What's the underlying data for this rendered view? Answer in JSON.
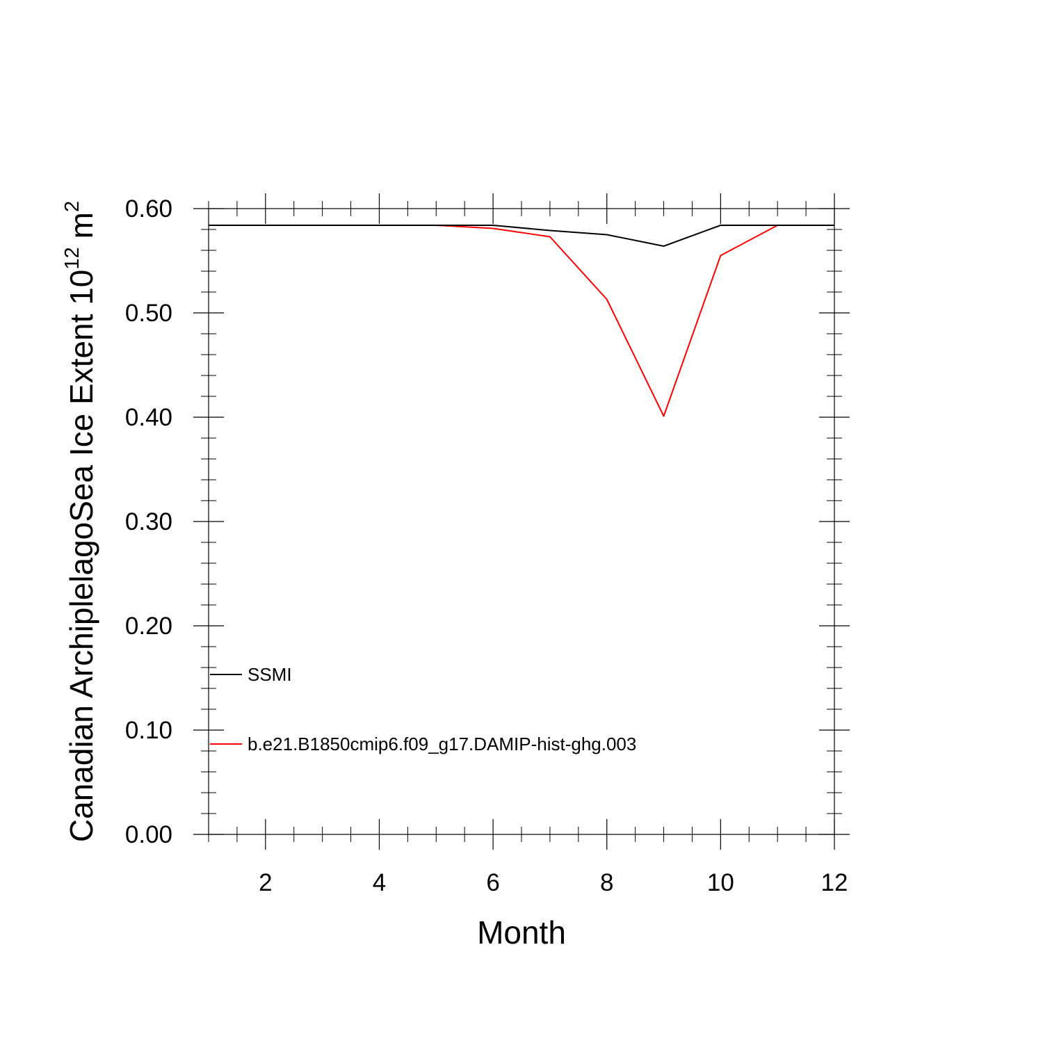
{
  "chart_data": {
    "type": "line",
    "title": "",
    "xlabel": "Month",
    "ylabel": {
      "text": "Canadian ArchiplelagoSea Ice Extent 10",
      "superscript": "12",
      "unit": "m",
      "unit_superscript": "2"
    },
    "xlim": [
      1,
      12
    ],
    "ylim": [
      0.0,
      0.6
    ],
    "xticks": [
      2,
      4,
      6,
      8,
      10,
      12
    ],
    "xtick_labels": [
      "2",
      "4",
      "6",
      "8",
      "10",
      "12"
    ],
    "yticks": [
      0.0,
      0.1,
      0.2,
      0.3,
      0.4,
      0.5,
      0.6
    ],
    "ytick_labels": [
      "0.00",
      "0.10",
      "0.20",
      "0.30",
      "0.40",
      "0.50",
      "0.60"
    ],
    "grid": false,
    "legend_position": "bottom-left",
    "x": [
      1,
      2,
      3,
      4,
      5,
      6,
      7,
      8,
      9,
      10,
      11,
      12
    ],
    "series": [
      {
        "name": "SSMI",
        "color": "#000000",
        "values": [
          0.584,
          0.584,
          0.584,
          0.584,
          0.584,
          0.584,
          0.579,
          0.575,
          0.564,
          0.584,
          0.584,
          0.584
        ]
      },
      {
        "name": "b.e21.B1850cmip6.f09_g17.DAMIP-hist-ghg.003",
        "color": "#ff0000",
        "values": [
          0.584,
          0.584,
          0.584,
          0.584,
          0.584,
          0.581,
          0.573,
          0.513,
          0.401,
          0.555,
          0.584,
          0.584
        ]
      }
    ]
  }
}
